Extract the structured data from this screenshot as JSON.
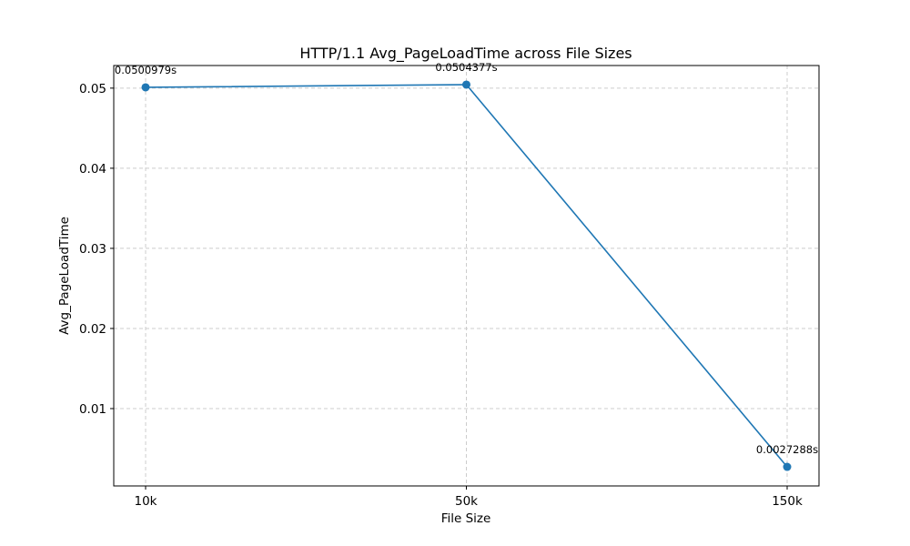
{
  "chart_data": {
    "type": "line",
    "title": "HTTP/1.1 Avg_PageLoadTime across File Sizes",
    "xlabel": "File Size",
    "ylabel": "Avg_PageLoadTime",
    "categories": [
      "10k",
      "50k",
      "150k"
    ],
    "series": [
      {
        "values": [
          0.0500979,
          0.0504377,
          0.0027288
        ],
        "color": "#1f77b4",
        "marker": "circle"
      }
    ],
    "data_labels": [
      "0.0500979s",
      "0.0504377s",
      "0.0027288s"
    ],
    "yticks": [
      0.01,
      0.02,
      0.03,
      0.04,
      0.05
    ],
    "ytick_labels": [
      "0.01",
      "0.02",
      "0.03",
      "0.04",
      "0.05"
    ],
    "ylim": [
      0.00034425,
      0.05282225
    ],
    "grid": true,
    "grid_style": "dashed",
    "grid_color": "#cccccc"
  }
}
